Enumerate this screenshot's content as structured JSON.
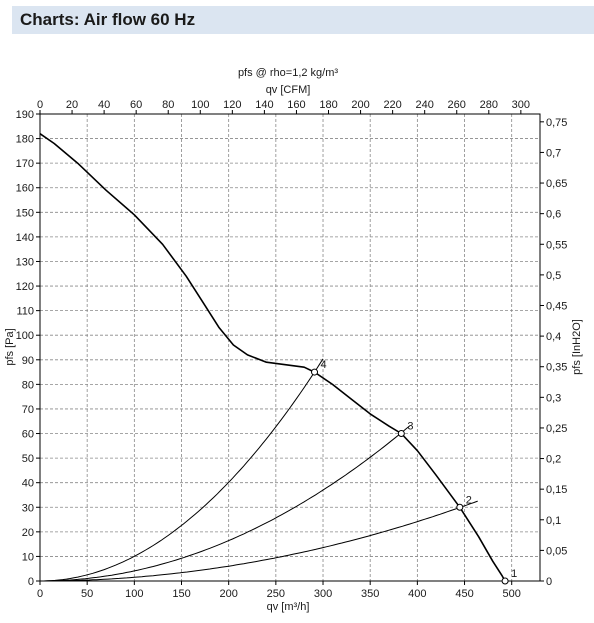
{
  "header": {
    "title": "Charts: Air flow 60 Hz"
  },
  "chart_data": {
    "type": "line",
    "title": "pfs @ rho=1,2 kg/m³",
    "xlabel": "qv [m³/h]",
    "x2label": "qv [CFM]",
    "ylabel": "pfs [Pa]",
    "y2label": "pfs [InH2O]",
    "xlim": [
      0,
      530
    ],
    "ylim": [
      0,
      190
    ],
    "x_ticks": [
      0,
      50,
      100,
      150,
      200,
      250,
      300,
      350,
      400,
      450,
      500
    ],
    "y_ticks": [
      0,
      10,
      20,
      30,
      40,
      50,
      60,
      70,
      80,
      90,
      100,
      110,
      120,
      130,
      140,
      150,
      160,
      170,
      180,
      190
    ],
    "x2_ticks": [
      0,
      20,
      40,
      60,
      80,
      100,
      120,
      140,
      160,
      180,
      200,
      220,
      240,
      260,
      280,
      300
    ],
    "y2_ticks": [
      "0",
      "0,05",
      "0,1",
      "0,15",
      "0,2",
      "0,25",
      "0,3",
      "0,35",
      "0,4",
      "0,45",
      "0,5",
      "0,55",
      "0,6",
      "0,65",
      "0,7",
      "0,75"
    ],
    "grid": true,
    "fan_curve": {
      "x": [
        0,
        15,
        40,
        70,
        100,
        130,
        155,
        175,
        190,
        205,
        220,
        240,
        260,
        280,
        291,
        310,
        330,
        350,
        370,
        383,
        400,
        420,
        445,
        465,
        480,
        490,
        493
      ],
      "y": [
        182,
        178,
        170,
        159,
        149,
        137,
        124,
        112,
        103,
        96,
        92,
        89,
        88,
        87,
        85,
        80,
        74,
        68,
        63,
        60,
        53,
        43,
        30,
        18,
        8,
        2,
        0
      ]
    },
    "system_curves": [
      {
        "label": "1",
        "k": 0
      },
      {
        "label": "2",
        "k": 0.000151
      },
      {
        "label": "3",
        "k": 0.000411
      },
      {
        "label": "4",
        "k": 0.001004
      }
    ],
    "operating_points": [
      {
        "label": "1",
        "x": 493,
        "y": 0
      },
      {
        "label": "2",
        "x": 445,
        "y": 30
      },
      {
        "label": "3",
        "x": 383,
        "y": 60
      },
      {
        "label": "4",
        "x": 291,
        "y": 85
      }
    ]
  }
}
